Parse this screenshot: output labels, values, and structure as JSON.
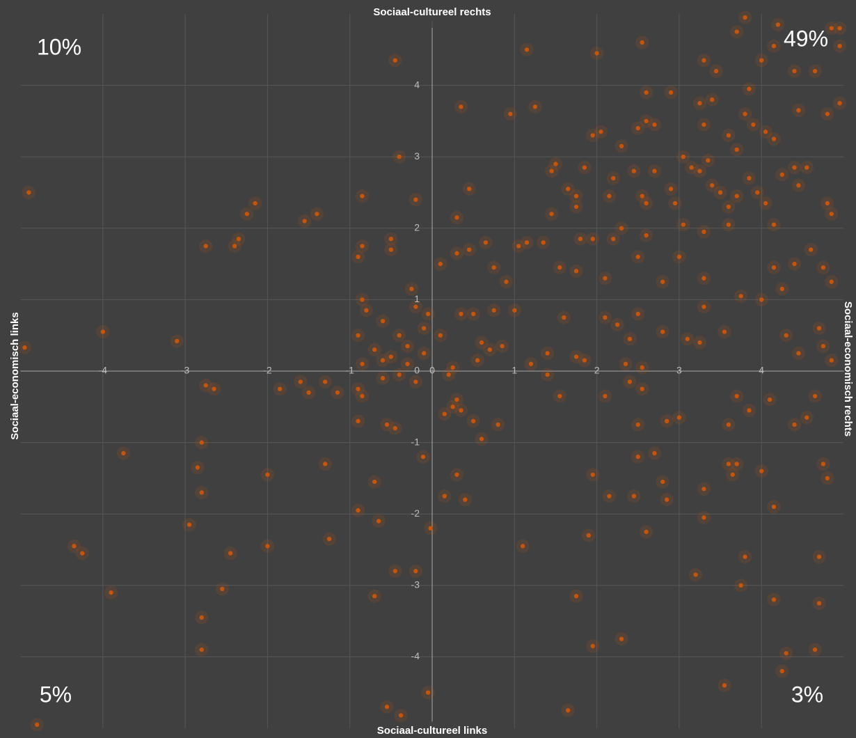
{
  "chart_data": {
    "type": "scatter",
    "title_top": "Sociaal-cultureel rechts",
    "title_bottom": "Sociaal-cultureel links",
    "title_left": "Sociaal-economisch links",
    "title_right": "Sociaal-economisch rechts",
    "quadrant_labels": {
      "top_left": "10%",
      "top_right": "49%",
      "bottom_left": "5%",
      "bottom_right": "3%"
    },
    "xlim": [
      -5,
      5
    ],
    "ylim": [
      -5,
      5
    ],
    "xticks": [
      -4,
      -3,
      -2,
      -1,
      0,
      1,
      2,
      3,
      4
    ],
    "yticks": [
      -4,
      -3,
      -2,
      -1,
      0,
      1,
      2,
      3,
      4
    ],
    "grid": true,
    "series": [
      {
        "color": "#c4550f",
        "x": [
          -4.9,
          -2.75,
          -2.4,
          -2.35,
          -2.25,
          -2.15,
          -1.55,
          -1.4,
          -0.45,
          -0.85,
          -0.4,
          -0.2,
          -0.9,
          -0.85,
          -0.5,
          -0.5,
          -0.25,
          -4,
          -3.1,
          -4.95,
          -0.85,
          -0.8,
          -0.6,
          -0.4,
          -0.2,
          -0.1,
          -0.9,
          -0.7,
          -0.5,
          -0.3,
          -0.05,
          -0.85,
          -0.6,
          -0.3,
          -0.1,
          -2.75,
          -2.65,
          -1.85,
          -1.6,
          -1.5,
          -1.3,
          -1.15,
          -0.9,
          -0.85,
          -0.6,
          -0.4,
          -0.2,
          -2.8,
          -2.85,
          -2.8,
          -3.75,
          -2.0,
          -1.3,
          -0.9,
          -0.55,
          -0.45,
          -0.7,
          -0.9,
          -0.65,
          -2.95,
          -4.35,
          -4.25,
          -2.45,
          -2.0,
          -1.25,
          -3.9,
          -2.55,
          -2.8,
          -2.8,
          -0.7,
          -0.45,
          -0.2,
          -4.8,
          -0.55,
          -0.38,
          -0.05,
          -0.11,
          0.3,
          0.25,
          0.15,
          0.35,
          0.5,
          0.6,
          0.8,
          0.3,
          0.4,
          0.15,
          -0.02,
          1.1,
          1.75,
          1.95,
          2.3,
          1.65,
          1.9,
          1.95,
          2.15,
          2.45,
          2.5,
          2.6,
          2.85,
          2.8,
          2.7,
          3.2,
          3.3,
          3.3,
          3.6,
          3.7,
          3.65,
          3.8,
          3.75,
          4.0,
          4.15,
          4.15,
          4.25,
          4.3,
          4.7,
          4.7,
          4.75,
          4.8,
          4.65,
          3.55,
          2.5,
          2.85,
          3.0,
          3.6,
          3.7,
          3.85,
          4.1,
          4.4,
          4.55,
          4.65,
          2.4,
          2.55,
          2.1,
          1.55,
          1.4,
          1.15,
          2.0,
          2.55,
          3.7,
          3.8,
          4.2,
          4.85,
          4.95,
          4.95,
          4.15,
          3.3,
          3.45,
          4.0,
          4.4,
          4.65,
          0.35,
          0.95,
          1.25,
          2.6,
          2.9,
          3.25,
          3.4,
          3.85,
          3.8,
          4.45,
          4.8,
          4.95,
          2.5,
          2.6,
          2.7,
          3.3,
          3.6,
          3.7,
          3.9,
          4.05,
          4.15,
          0.45,
          1.45,
          1.5,
          1.65,
          1.75,
          1.85,
          1.95,
          2.05,
          2.2,
          2.3,
          2.45,
          2.55,
          2.7,
          2.9,
          3.05,
          3.15,
          3.25,
          3.35,
          3.4,
          3.5,
          3.6,
          3.7,
          3.85,
          3.95,
          4.05,
          4.25,
          4.45,
          4.4,
          4.55,
          4.8,
          4.85,
          1.45,
          0.3,
          1.75,
          2.15,
          2.3,
          2.6,
          2.95,
          3.05,
          3.3,
          3.6,
          4.15,
          0.1,
          0.3,
          0.45,
          0.65,
          0.75,
          0.9,
          1.05,
          1.15,
          1.35,
          1.55,
          1.75,
          1.8,
          1.95,
          2.1,
          2.2,
          2.5,
          2.6,
          2.8,
          3.0,
          3.3,
          3.75,
          4.0,
          4.15,
          4.25,
          4.4,
          4.6,
          4.75,
          4.85,
          0.1,
          0.25,
          0.35,
          0.5,
          0.6,
          0.7,
          0.75,
          0.85,
          1.0,
          1.2,
          1.4,
          1.6,
          1.75,
          1.85,
          2.1,
          2.25,
          2.4,
          2.5,
          2.8,
          3.1,
          3.3,
          3.55,
          4.3,
          4.45,
          4.7,
          4.75,
          4.85,
          0.2,
          0.55,
          2.35,
          2.55,
          3.25
        ],
        "values": [
          2.5,
          1.75,
          1.75,
          1.85,
          2.2,
          2.35,
          2.1,
          2.2,
          4.35,
          2.45,
          3.0,
          2.4,
          1.6,
          1.75,
          1.7,
          1.85,
          1.15,
          0.55,
          0.42,
          0.33,
          1.0,
          0.85,
          0.7,
          0.5,
          0.9,
          0.6,
          0.5,
          0.3,
          0.2,
          0.35,
          0.8,
          0.1,
          0.15,
          0.1,
          0.25,
          -0.2,
          -0.25,
          -0.25,
          -0.15,
          -0.3,
          -0.15,
          -0.3,
          -0.25,
          -0.35,
          -0.1,
          -0.05,
          -0.15,
          -1.0,
          -1.35,
          -1.7,
          -1.15,
          -1.45,
          -1.3,
          -0.7,
          -0.75,
          -0.8,
          -1.55,
          -1.95,
          -2.1,
          -2.15,
          -2.45,
          -2.55,
          -2.55,
          -2.45,
          -2.35,
          -3.1,
          -3.05,
          -3.45,
          -3.9,
          -3.15,
          -2.8,
          -2.8,
          -4.95,
          -4.7,
          -4.82,
          -4.5,
          -1.2,
          -0.4,
          -0.5,
          -0.6,
          -0.55,
          -0.7,
          -0.95,
          -0.75,
          -1.45,
          -1.8,
          -1.75,
          -2.2,
          -2.45,
          -3.15,
          -3.85,
          -3.75,
          -4.75,
          -2.3,
          -1.45,
          -1.75,
          -1.75,
          -1.2,
          -2.25,
          -1.8,
          -1.55,
          -1.15,
          -2.85,
          -2.05,
          -1.65,
          -1.3,
          -1.3,
          -1.45,
          -2.6,
          -3.0,
          -1.4,
          -1.9,
          -3.2,
          -4.2,
          -3.95,
          -2.6,
          -3.25,
          -1.3,
          -1.5,
          -3.9,
          -4.4,
          -0.75,
          -0.7,
          -0.65,
          -0.75,
          -0.35,
          -0.55,
          -0.4,
          -0.75,
          -0.65,
          -0.35,
          -0.15,
          -0.25,
          -0.35,
          -0.35,
          -0.05,
          4.5,
          4.45,
          4.6,
          4.75,
          4.95,
          4.85,
          4.8,
          4.8,
          4.55,
          4.55,
          4.35,
          4.2,
          4.35,
          4.2,
          4.2,
          3.7,
          3.6,
          3.7,
          3.9,
          3.9,
          3.75,
          3.8,
          3.95,
          3.6,
          3.65,
          3.6,
          3.75,
          3.4,
          3.5,
          3.45,
          3.45,
          3.3,
          3.1,
          3.45,
          3.35,
          3.25,
          2.55,
          2.8,
          2.9,
          2.55,
          2.45,
          2.85,
          3.3,
          3.35,
          2.7,
          3.15,
          2.8,
          2.45,
          2.8,
          2.55,
          3.0,
          2.85,
          2.8,
          2.95,
          2.6,
          2.5,
          2.3,
          2.45,
          2.7,
          2.5,
          2.35,
          2.75,
          2.6,
          2.85,
          2.85,
          2.35,
          2.2,
          2.2,
          2.15,
          2.3,
          2.45,
          2.0,
          2.35,
          2.35,
          2.05,
          1.95,
          2.05,
          2.05,
          1.5,
          1.65,
          1.7,
          1.8,
          1.45,
          1.25,
          1.75,
          1.8,
          1.8,
          1.45,
          1.4,
          1.85,
          1.85,
          1.3,
          1.85,
          1.6,
          1.9,
          1.25,
          1.6,
          1.3,
          1.05,
          1.0,
          1.45,
          1.15,
          1.5,
          1.7,
          1.45,
          1.25,
          0.5,
          0.05,
          0.8,
          0.8,
          0.4,
          0.3,
          0.85,
          0.35,
          0.85,
          0.1,
          0.25,
          0.75,
          0.2,
          0.15,
          0.75,
          0.65,
          0.45,
          0.8,
          0.55,
          0.45,
          0.9,
          0.55,
          0.5,
          0.25,
          0.6,
          0.35,
          0.15,
          -0.05,
          0.15,
          0.1,
          0.05,
          0.4
        ]
      }
    ]
  }
}
